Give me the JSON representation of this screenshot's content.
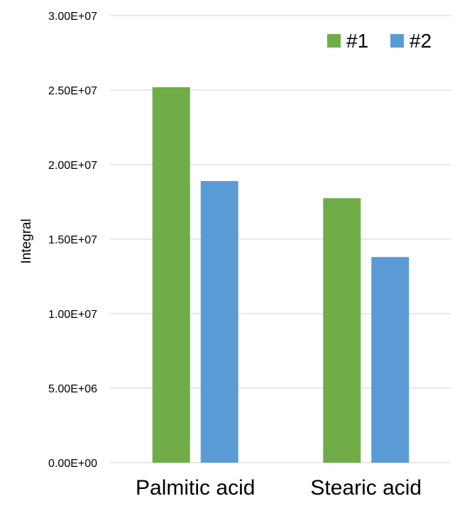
{
  "chart_data": {
    "type": "bar",
    "title": "",
    "xlabel": "",
    "ylabel": "Integral",
    "categories": [
      "Palmitic acid",
      "Stearic acid"
    ],
    "series": [
      {
        "name": "#1",
        "color": "#70ad47",
        "values": [
          25200000,
          17750000
        ]
      },
      {
        "name": "#2",
        "color": "#5b9bd5",
        "values": [
          18900000,
          13800000
        ]
      }
    ],
    "ylim": [
      0,
      30000000
    ],
    "yticks": [
      0,
      5000000,
      10000000,
      15000000,
      20000000,
      25000000,
      30000000
    ],
    "ytick_labels": [
      "0.00E+00",
      "5.00E+06",
      "1.00E+07",
      "1.50E+07",
      "2.00E+07",
      "2.50E+07",
      "3.00E+07"
    ],
    "grid": true,
    "legend_position": "top-right"
  }
}
